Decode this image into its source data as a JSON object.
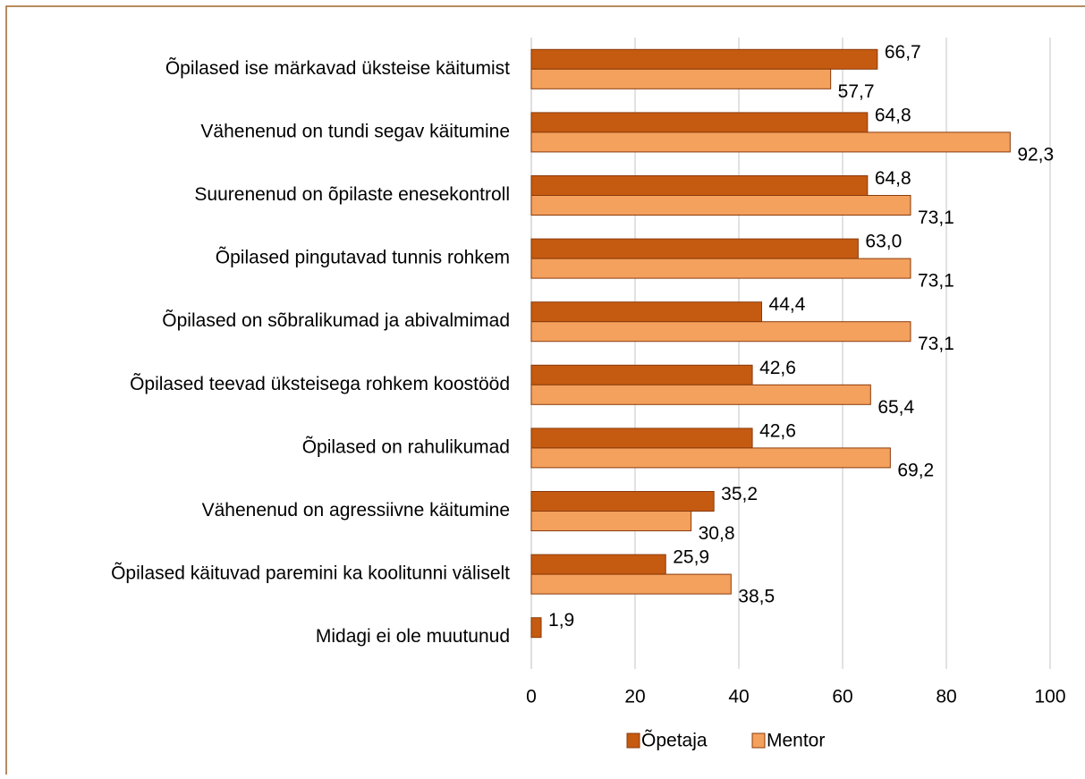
{
  "chart_data": {
    "type": "bar",
    "orientation": "horizontal",
    "categories": [
      "Õpilased ise märkavad üksteise käitumist ",
      "Vähenenud on tundi segav käitumine",
      "Suurenenud on õpilaste enesekontroll",
      "Õpilased pingutavad tunnis rohkem",
      "Õpilased on sõbralikumad ja abivalmimad",
      "Õpilased teevad üksteisega rohkem koostööd",
      "Õpilased on rahulikumad",
      "Vähenenud on agressiivne käitumine",
      "Õpilased käituvad paremini ka koolitunni väliselt",
      "Midagi ei ole muutunud"
    ],
    "series": [
      {
        "name": "Õpetaja",
        "color": "#c55a11",
        "values": [
          66.7,
          64.8,
          64.8,
          63.0,
          44.4,
          42.6,
          42.6,
          35.2,
          25.9,
          1.9
        ],
        "value_labels": [
          "66,7",
          "64,8",
          "64,8",
          "63,0",
          "44,4",
          "42,6",
          "42,6",
          "35,2",
          "25,9",
          "1,9"
        ]
      },
      {
        "name": "Mentor",
        "color": "#f4a15d",
        "values": [
          57.7,
          92.3,
          73.1,
          73.1,
          73.1,
          65.4,
          69.2,
          30.8,
          38.5,
          null
        ],
        "value_labels": [
          "57,7",
          "92,3",
          "73,1",
          "73,1",
          "73,1",
          "65,4",
          "69,2",
          "30,8",
          "38,5",
          null
        ]
      }
    ],
    "xlim": [
      0,
      100
    ],
    "xticks": [
      0,
      20,
      40,
      60,
      80,
      100
    ],
    "grid": true,
    "legend": "bottom"
  }
}
